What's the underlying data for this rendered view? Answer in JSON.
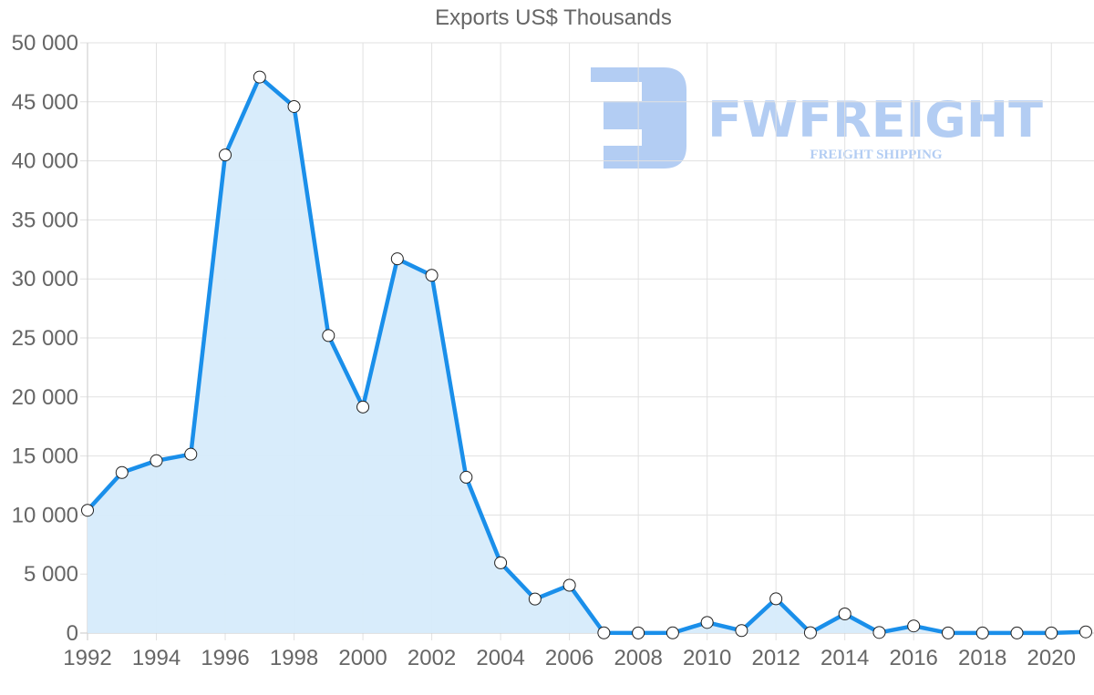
{
  "chart_data": {
    "type": "area",
    "title": "Exports US$ Thousands",
    "xlabel": "",
    "ylabel": "",
    "x": [
      1992,
      1993,
      1994,
      1995,
      1996,
      1997,
      1998,
      1999,
      2000,
      2001,
      2002,
      2003,
      2004,
      2005,
      2006,
      2007,
      2008,
      2009,
      2010,
      2011,
      2012,
      2013,
      2014,
      2015,
      2016,
      2017,
      2018,
      2019,
      2020,
      2021
    ],
    "series": [
      {
        "name": "Exports",
        "values": [
          10400,
          13600,
          14600,
          15150,
          40500,
          47100,
          44600,
          25200,
          19150,
          31700,
          30300,
          13200,
          5950,
          2880,
          4050,
          20,
          10,
          15,
          900,
          210,
          2900,
          30,
          1620,
          50,
          600,
          10,
          5,
          5,
          10,
          100
        ]
      }
    ],
    "xticks": [
      "1992",
      "1994",
      "1996",
      "1998",
      "2000",
      "2002",
      "2004",
      "2006",
      "2008",
      "2010",
      "2012",
      "2014",
      "2016",
      "2018",
      "2020"
    ],
    "yticks": [
      "0",
      "5 000",
      "10 000",
      "15 000",
      "20 000",
      "25 000",
      "30 000",
      "35 000",
      "40 000",
      "45 000",
      "50 000"
    ],
    "ylim": [
      0,
      50000
    ],
    "xlim": [
      1992,
      2021
    ],
    "grid": true,
    "legend": "none",
    "colors": {
      "line": "#1a8fea",
      "fill": "#d6ebfb",
      "marker_fill": "#ffffff",
      "marker_stroke": "#222222"
    }
  },
  "watermark": {
    "brand": "FWFREIGHT",
    "tagline": "FREIGHT SHIPPING",
    "color": "#b3cdf3"
  }
}
